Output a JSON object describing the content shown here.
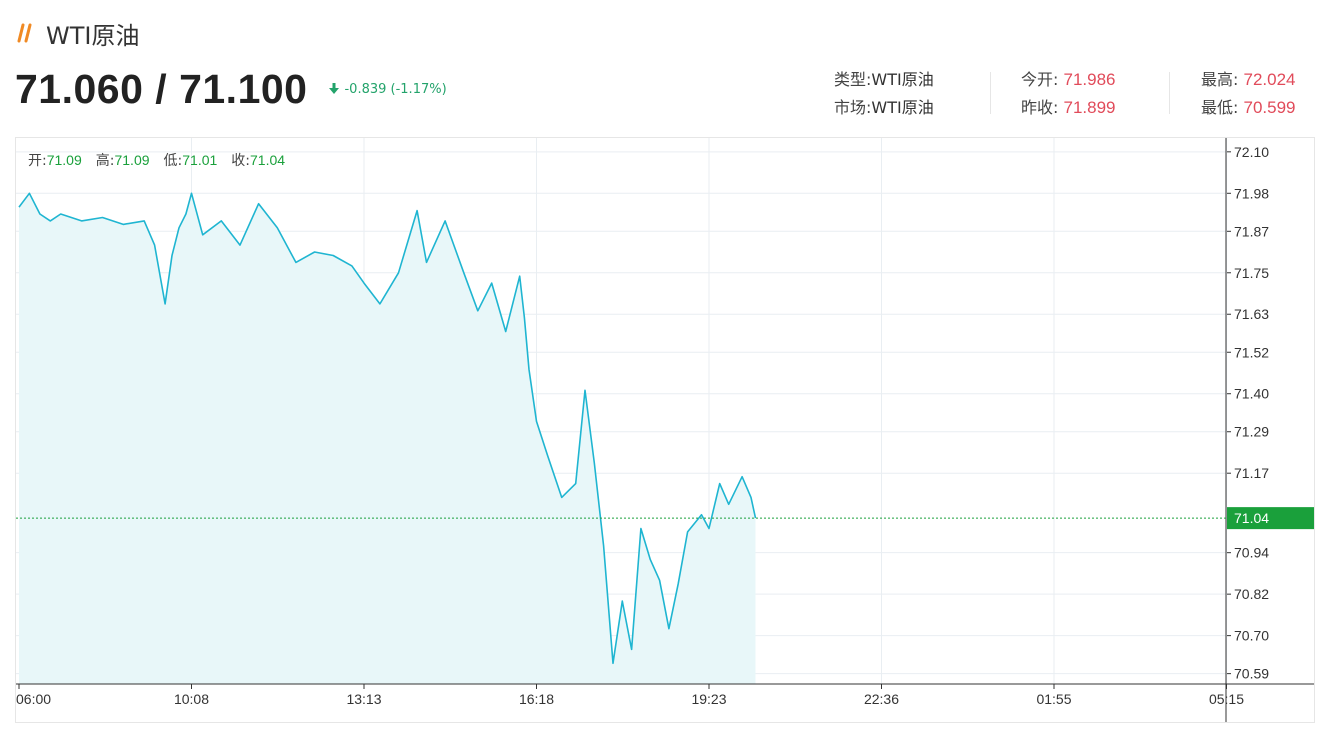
{
  "header": {
    "title": "WTI原油",
    "logo_icon": "double-slash-icon",
    "price_text": "71.060 / 71.100",
    "change_text": "-0.839 (-1.17%)",
    "change_icon": "arrow-down-icon"
  },
  "info": {
    "type_label": "类型:",
    "type_value": "WTI原油",
    "market_label": "市场:",
    "market_value": "WTI原油",
    "open_label": "今开:",
    "open_value": "71.986",
    "prev_close_label": "昨收:",
    "prev_close_value": "71.899",
    "high_label": "最高:",
    "high_value": "72.024",
    "low_label": "最低:",
    "low_value": "70.599"
  },
  "ohlc": {
    "open_label": "开:",
    "open_value": "71.09",
    "high_label": "高:",
    "high_value": "71.09",
    "low_label": "低:",
    "low_value": "71.01",
    "close_label": "收:",
    "close_value": "71.04"
  },
  "colors": {
    "line": "#1fb5d1",
    "area": "#e8f7f9",
    "current_marker": "#1aa03b",
    "up_text": "#e14b5a",
    "down_text": "#23a36b",
    "grid": "#e9eef2"
  },
  "chart_data": {
    "type": "area",
    "x_ticks": [
      "06:00",
      "10:08",
      "13:13",
      "16:18",
      "19:23",
      "22:36",
      "01:55",
      "05:15"
    ],
    "y_ticks": [
      "72.10",
      "71.98",
      "71.87",
      "71.75",
      "71.63",
      "71.52",
      "71.40",
      "71.29",
      "71.17",
      "70.94",
      "70.82",
      "70.70",
      "70.59"
    ],
    "ylim": [
      70.56,
      72.14
    ],
    "current_value": "71.04",
    "grid": true,
    "x": [
      "06:00",
      "06:15",
      "06:30",
      "06:45",
      "07:00",
      "07:30",
      "08:00",
      "08:30",
      "09:00",
      "09:15",
      "09:30",
      "09:40",
      "09:50",
      "10:00",
      "10:08",
      "10:20",
      "10:40",
      "11:00",
      "11:20",
      "11:40",
      "12:00",
      "12:20",
      "12:40",
      "13:00",
      "13:13",
      "13:30",
      "13:50",
      "14:10",
      "14:20",
      "14:40",
      "15:00",
      "15:15",
      "15:30",
      "15:45",
      "16:00",
      "16:05",
      "16:10",
      "16:18",
      "16:30",
      "16:45",
      "17:00",
      "17:10",
      "17:20",
      "17:30",
      "17:40",
      "17:50",
      "18:00",
      "18:10",
      "18:20",
      "18:30",
      "18:40",
      "18:50",
      "19:00",
      "19:15",
      "19:23",
      "19:35",
      "19:45",
      "20:00",
      "20:10",
      "20:15"
    ],
    "y": [
      71.94,
      71.98,
      71.92,
      71.9,
      71.92,
      71.9,
      71.91,
      71.89,
      71.9,
      71.83,
      71.66,
      71.8,
      71.88,
      71.92,
      71.98,
      71.86,
      71.9,
      71.83,
      71.95,
      71.88,
      71.78,
      71.81,
      71.8,
      71.77,
      71.72,
      71.66,
      71.75,
      71.93,
      71.78,
      71.9,
      71.75,
      71.64,
      71.72,
      71.58,
      71.74,
      71.62,
      71.47,
      71.32,
      71.22,
      71.1,
      71.14,
      71.41,
      71.2,
      70.96,
      70.62,
      70.8,
      70.66,
      71.01,
      70.92,
      70.86,
      70.72,
      70.85,
      71.0,
      71.05,
      71.01,
      71.14,
      71.08,
      71.16,
      71.1,
      71.04
    ]
  }
}
